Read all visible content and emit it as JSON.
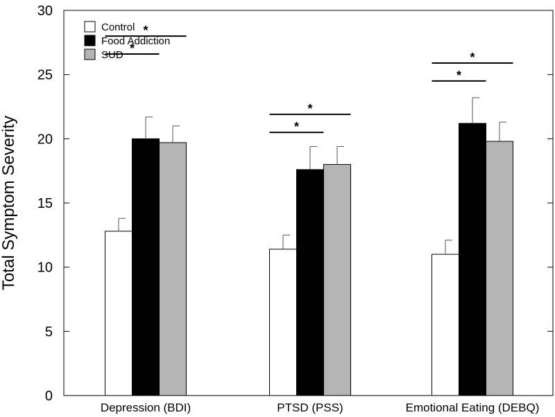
{
  "chart_data": {
    "type": "bar",
    "title": "",
    "xlabel": "",
    "ylabel": "Total Symptom Severity",
    "ylim": [
      0,
      30
    ],
    "yticks": [
      0,
      5,
      10,
      15,
      20,
      25,
      30
    ],
    "grid": false,
    "legend_position": "top-left",
    "categories": [
      "Depression (BDI)",
      "PTSD (PSS)",
      "Emotional Eating (DEBQ)"
    ],
    "series": [
      {
        "name": "Control",
        "color": "#ffffff",
        "values": [
          12.8,
          11.4,
          11.0
        ],
        "errors": [
          1.0,
          1.1,
          1.1
        ]
      },
      {
        "name": "Food Addiction",
        "color": "#000000",
        "values": [
          20.0,
          17.6,
          21.2
        ],
        "errors": [
          1.7,
          1.8,
          2.0
        ]
      },
      {
        "name": "SUD",
        "color": "#b4b4b4",
        "values": [
          19.7,
          18.0,
          19.8
        ],
        "errors": [
          1.3,
          1.4,
          1.5
        ]
      }
    ],
    "significance": [
      {
        "category": 0,
        "from_series": 0,
        "to_series": 1,
        "y": 26.6,
        "label": "*"
      },
      {
        "category": 0,
        "from_series": 0,
        "to_series": 2,
        "y": 28.0,
        "label": "*"
      },
      {
        "category": 1,
        "from_series": 0,
        "to_series": 1,
        "y": 20.5,
        "label": "*"
      },
      {
        "category": 1,
        "from_series": 0,
        "to_series": 2,
        "y": 21.9,
        "label": "*"
      },
      {
        "category": 2,
        "from_series": 0,
        "to_series": 1,
        "y": 24.5,
        "label": "*"
      },
      {
        "category": 2,
        "from_series": 0,
        "to_series": 2,
        "y": 25.9,
        "label": "*"
      }
    ]
  }
}
